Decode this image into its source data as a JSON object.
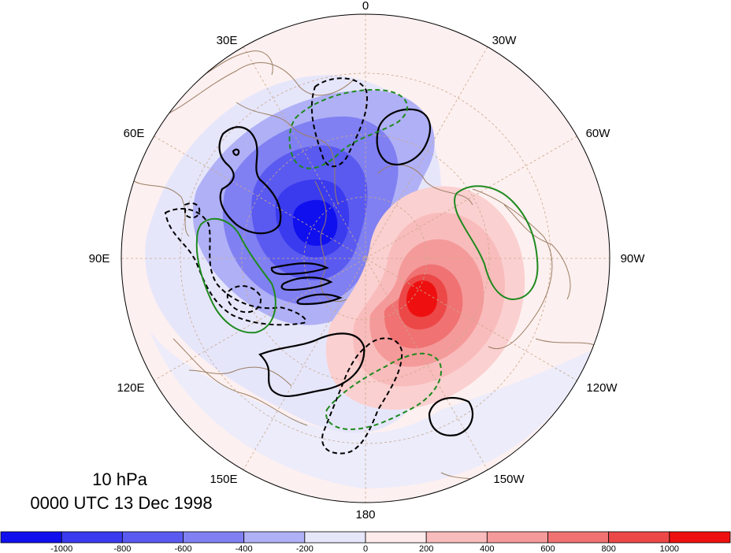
{
  "map": {
    "projection": "north-polar-stereographic",
    "longitude_labels": [
      {
        "text": "0",
        "lon": "0"
      },
      {
        "text": "30W",
        "lon": "-30"
      },
      {
        "text": "60W",
        "lon": "-60"
      },
      {
        "text": "90W",
        "lon": "-90"
      },
      {
        "text": "120W",
        "lon": "-120"
      },
      {
        "text": "150W",
        "lon": "-150"
      },
      {
        "text": "180",
        "lon": "180"
      },
      {
        "text": "150E",
        "lon": "150"
      },
      {
        "text": "120E",
        "lon": "120"
      },
      {
        "text": "90E",
        "lon": "90"
      },
      {
        "text": "60E",
        "lon": "60"
      },
      {
        "text": "30E",
        "lon": "30"
      }
    ],
    "graticule": "dashed",
    "coastline_color": "#9b7f63",
    "shaded_field": {
      "palette": [
        "#1010ee",
        "#3a3aef",
        "#5a5af0",
        "#8080f2",
        "#b0b0f6",
        "#e6e6fb",
        "#fdeaea",
        "#f9bcbc",
        "#f59a9a",
        "#f07272",
        "#ec4848",
        "#ee1010"
      ],
      "contour_levels": [
        -1000,
        -800,
        -600,
        -400,
        -200,
        0,
        200,
        400,
        600,
        800,
        1000
      ]
    },
    "overlay_contours": {
      "black_solid": "positive",
      "black_dashed": "negative",
      "green_solid": "positive",
      "green_dashed": "negative"
    }
  },
  "title": {
    "level": "10 hPa",
    "time": "0000 UTC 13 Dec 1998"
  },
  "colorbar": {
    "tick_labels": [
      "-1000",
      "-800",
      "-600",
      "-400",
      "-200",
      "0",
      "200",
      "400",
      "600",
      "800",
      "1000"
    ]
  }
}
